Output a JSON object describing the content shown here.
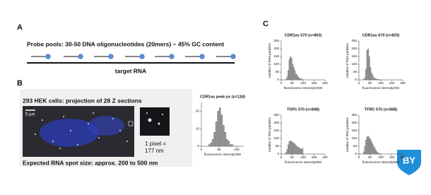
{
  "panels": {
    "a": {
      "letter": "A",
      "probe_text": "Probe pools: 30-50 DNA oligonucleotides (20mers) ~ 45% GC content",
      "target_label": "target RNA"
    },
    "b": {
      "letter": "B",
      "cell_title": "293 HEK cells: projection of 28 Z sections",
      "scale_bar": "5 µm",
      "pixel_note_1": "1 pixel =",
      "pixel_note_2": "177 nm",
      "spot_size": "Expected RNA spot size: approx. 200 to 500 nm"
    },
    "c": {
      "letter": "C"
    },
    "badge": "BY"
  },
  "chart_data": [
    {
      "type": "histogram",
      "title": "CDR1as peak px (n=118)",
      "xlabel": "fluorescence intensity/380",
      "color": "#9a9a9a",
      "bins": [
        20,
        25,
        30,
        35,
        40,
        45,
        50,
        55,
        60,
        65,
        70,
        75,
        80,
        85,
        90,
        95,
        100
      ],
      "counts": [
        1,
        2,
        4,
        8,
        14,
        20,
        22,
        18,
        12,
        8,
        4,
        3,
        1,
        1,
        0,
        0
      ],
      "xlim": [
        0,
        120
      ],
      "ylim": [
        0,
        25
      ],
      "xticks": [
        0,
        50,
        100
      ],
      "yticks": [
        0,
        10,
        20
      ]
    },
    {
      "type": "histogram",
      "title": "CDR1as 570 (n=863)",
      "xlabel": "fluorescence intensity/1000",
      "ylabel": "number of RNA particles",
      "color": "#9a9a9a",
      "bins": [
        20,
        25,
        30,
        35,
        40,
        45,
        50,
        55,
        60,
        65,
        70,
        75,
        80,
        85,
        90,
        95,
        100
      ],
      "counts": [
        5,
        20,
        60,
        130,
        150,
        140,
        100,
        80,
        60,
        40,
        30,
        20,
        12,
        8,
        5,
        3
      ],
      "xlim": [
        0,
        200
      ],
      "ylim": [
        0,
        250
      ],
      "xticks": [
        0,
        50,
        100,
        150,
        200
      ],
      "yticks": [
        0,
        50,
        100,
        150,
        200,
        250
      ]
    },
    {
      "type": "histogram",
      "title": "CDR1as 670 (n=825)",
      "xlabel": "fluorescence intensity/200",
      "ylabel": "number of RNA particles",
      "color": "#9a9a9a",
      "bins": [
        20,
        25,
        30,
        35,
        40,
        45,
        50,
        55,
        60,
        65,
        70,
        75,
        80,
        85,
        90,
        95,
        100
      ],
      "counts": [
        3,
        15,
        70,
        190,
        200,
        150,
        80,
        45,
        30,
        15,
        10,
        7,
        4,
        3,
        2,
        1
      ],
      "xlim": [
        0,
        200
      ],
      "ylim": [
        0,
        250
      ],
      "xticks": [
        0,
        50,
        100,
        150,
        200
      ],
      "yticks": [
        0,
        50,
        100,
        150,
        200,
        250
      ]
    },
    {
      "type": "histogram",
      "title": "TOP1 570 (n=848)",
      "xlabel": "fluorescence intensity/600",
      "ylabel": "number of RNA particles",
      "color": "#9a9a9a",
      "bins": [
        20,
        25,
        30,
        35,
        40,
        45,
        50,
        55,
        60,
        65,
        70,
        75,
        80,
        85,
        90,
        95,
        100
      ],
      "counts": [
        10,
        30,
        60,
        80,
        85,
        80,
        75,
        70,
        65,
        55,
        50,
        45,
        40,
        35,
        30,
        38
      ],
      "xlim": [
        0,
        200
      ],
      "ylim": [
        0,
        250
      ],
      "xticks": [
        0,
        50,
        100,
        150,
        200
      ],
      "yticks": [
        0,
        50,
        100,
        150,
        200,
        250
      ]
    },
    {
      "type": "histogram",
      "title": "TFRC 570 (n=868)",
      "xlabel": "fluorescence intensity/600",
      "ylabel": "number of RNA particles",
      "color": "#9a9a9a",
      "bins": [
        20,
        25,
        30,
        35,
        40,
        45,
        50,
        55,
        60,
        65,
        70,
        75,
        80,
        85,
        90,
        95,
        100
      ],
      "counts": [
        15,
        50,
        90,
        110,
        115,
        105,
        95,
        80,
        65,
        50,
        40,
        25,
        15,
        8,
        3,
        2
      ],
      "xlim": [
        0,
        200
      ],
      "ylim": [
        0,
        250
      ],
      "xticks": [
        0,
        50,
        100,
        150,
        200
      ],
      "yticks": [
        0,
        50,
        100,
        150,
        200,
        250
      ]
    }
  ]
}
